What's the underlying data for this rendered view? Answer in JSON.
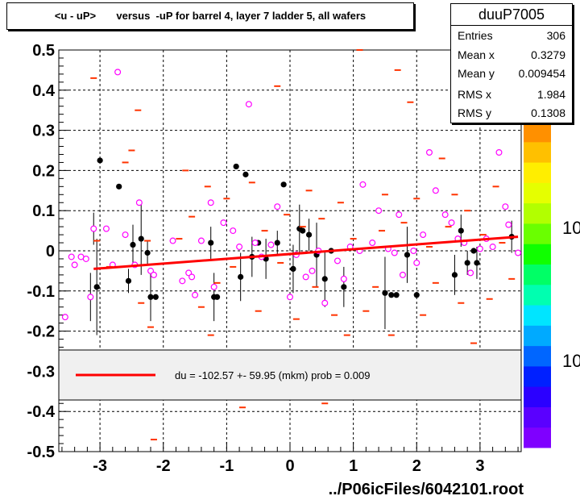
{
  "chart_data": {
    "type": "scatter",
    "title": "<u - uP>       versus  -uP for barrel 4, layer 7 ladder 5, all wafers",
    "xlim": [
      -3.65,
      3.65
    ],
    "ylim": [
      -0.5,
      0.5
    ],
    "xticks": [
      -3,
      -2,
      -1,
      0,
      1,
      2,
      3
    ],
    "yticks": [
      -0.5,
      -0.4,
      -0.3,
      -0.2,
      -0.1,
      0,
      0.1,
      0.2,
      0.3,
      0.4,
      0.5
    ],
    "xtick_labels": [
      "-3",
      "-2",
      "-1",
      "0",
      "1",
      "2",
      "3"
    ],
    "ytick_labels": [
      "-0.5",
      "-0.4",
      "-0.3",
      "-0.2",
      "-0.1",
      "0",
      "0.1",
      "0.2",
      "0.3",
      "0.4",
      "0.5"
    ],
    "grid": true,
    "stats": {
      "name": "duuP7005",
      "rows": [
        {
          "label": "Entries",
          "value": "306"
        },
        {
          "label": "Mean x",
          "value": "0.3279"
        },
        {
          "label": "Mean y",
          "value": "0.009454"
        },
        {
          "label": "RMS x",
          "value": "1.984"
        },
        {
          "label": "RMS y",
          "value": "0.1308"
        }
      ]
    },
    "fit": {
      "x": [
        -3.1,
        3.6
      ],
      "y": [
        -0.045,
        0.035
      ],
      "color": "#ff0000",
      "label": "du = -102.57 +- 59.95 (mkm) prob = 0.009"
    },
    "colorbar": {
      "colors": [
        "#7f00ff",
        "#5a00ff",
        "#2b00ff",
        "#0020ff",
        "#0066ff",
        "#00aaff",
        "#00e5ff",
        "#00ffb0",
        "#00ff66",
        "#10ff00",
        "#6aff00",
        "#b2ff00",
        "#e5ff00",
        "#ffee00",
        "#ffc000",
        "#ff9000",
        "#ff5a00",
        "#ff2000"
      ],
      "labels": [
        "10",
        "10"
      ]
    },
    "series": [
      {
        "marker": "filled-circle",
        "color": "#000000",
        "points": [
          {
            "x": -3.05,
            "y": -0.09,
            "err": 0.12
          },
          {
            "x": -3.0,
            "y": 0.225,
            "err": 0.0
          },
          {
            "x": -2.7,
            "y": 0.16,
            "err": 0.0
          },
          {
            "x": -2.55,
            "y": -0.075,
            "err": 0.03
          },
          {
            "x": -2.48,
            "y": 0.015,
            "err": 0.05
          },
          {
            "x": -2.35,
            "y": 0.03,
            "err": 0.09
          },
          {
            "x": -2.25,
            "y": -0.005,
            "err": 0.03
          },
          {
            "x": -2.2,
            "y": -0.115,
            "err": 0.06
          },
          {
            "x": -2.12,
            "y": -0.115,
            "err": 0.0
          },
          {
            "x": -1.25,
            "y": 0.02,
            "err": 0.04
          },
          {
            "x": -1.2,
            "y": -0.115,
            "err": 0.06
          },
          {
            "x": -1.15,
            "y": -0.115,
            "err": 0.0
          },
          {
            "x": -0.85,
            "y": 0.21,
            "err": 0.0
          },
          {
            "x": -0.78,
            "y": -0.065,
            "err": 0.06
          },
          {
            "x": -0.7,
            "y": 0.19,
            "err": 0.0
          },
          {
            "x": -0.6,
            "y": -0.015,
            "err": 0.05
          },
          {
            "x": -0.5,
            "y": 0.02,
            "err": 0.0
          },
          {
            "x": -0.38,
            "y": -0.02,
            "err": 0.05
          },
          {
            "x": -0.2,
            "y": 0.02,
            "err": 0.03
          },
          {
            "x": -0.1,
            "y": 0.165,
            "err": 0.0
          },
          {
            "x": 0.05,
            "y": -0.045,
            "err": 0.06
          },
          {
            "x": 0.15,
            "y": 0.055,
            "err": 0.06
          },
          {
            "x": 0.2,
            "y": 0.05,
            "err": 0.0
          },
          {
            "x": 0.3,
            "y": 0.04,
            "err": 0.04
          },
          {
            "x": 0.42,
            "y": -0.01,
            "err": 0.08
          },
          {
            "x": 0.55,
            "y": -0.07,
            "err": 0.07
          },
          {
            "x": 0.65,
            "y": 0.0,
            "err": 0.0
          },
          {
            "x": 0.85,
            "y": -0.09,
            "err": 0.05
          },
          {
            "x": 1.5,
            "y": -0.105,
            "err": 0.09
          },
          {
            "x": 1.6,
            "y": -0.11,
            "err": 0.0
          },
          {
            "x": 1.68,
            "y": -0.11,
            "err": 0.0
          },
          {
            "x": 1.85,
            "y": -0.01,
            "err": 0.07
          },
          {
            "x": 2.0,
            "y": -0.11,
            "err": 0.0
          },
          {
            "x": 2.6,
            "y": -0.06,
            "err": 0.05
          },
          {
            "x": 2.7,
            "y": 0.05,
            "err": 0.04
          },
          {
            "x": 2.8,
            "y": -0.03,
            "err": 0.03
          },
          {
            "x": 2.9,
            "y": 0.0,
            "err": 0.0
          },
          {
            "x": 2.95,
            "y": -0.03,
            "err": 0.04
          },
          {
            "x": 3.5,
            "y": 0.035,
            "err": 0.04
          }
        ]
      },
      {
        "marker": "open-circle",
        "color": "#ff00ff",
        "points": [
          {
            "x": -3.55,
            "y": -0.165,
            "err": 0.0
          },
          {
            "x": -3.45,
            "y": -0.015,
            "err": 0.0
          },
          {
            "x": -3.4,
            "y": -0.035,
            "err": 0.0
          },
          {
            "x": -3.3,
            "y": -0.015,
            "err": 0.0
          },
          {
            "x": -3.22,
            "y": -0.02,
            "err": 0.0
          },
          {
            "x": -3.15,
            "y": -0.115,
            "err": 0.06
          },
          {
            "x": -3.1,
            "y": 0.055,
            "err": 0.04
          },
          {
            "x": -2.9,
            "y": 0.055,
            "err": 0.0
          },
          {
            "x": -2.8,
            "y": -0.035,
            "err": 0.0
          },
          {
            "x": -2.72,
            "y": 0.445,
            "err": 0.0
          },
          {
            "x": -2.6,
            "y": 0.04,
            "err": 0.0
          },
          {
            "x": -2.45,
            "y": -0.035,
            "err": 0.0
          },
          {
            "x": -2.38,
            "y": 0.12,
            "err": 0.0
          },
          {
            "x": -2.2,
            "y": -0.05,
            "err": 0.0
          },
          {
            "x": -2.15,
            "y": -0.06,
            "err": 0.0
          },
          {
            "x": -1.85,
            "y": 0.025,
            "err": 0.0
          },
          {
            "x": -1.7,
            "y": -0.075,
            "err": 0.0
          },
          {
            "x": -1.6,
            "y": -0.055,
            "err": 0.0
          },
          {
            "x": -1.55,
            "y": -0.065,
            "err": 0.0
          },
          {
            "x": -1.5,
            "y": -0.11,
            "err": 0.0
          },
          {
            "x": -1.4,
            "y": 0.025,
            "err": 0.0
          },
          {
            "x": -1.25,
            "y": 0.12,
            "err": 0.0
          },
          {
            "x": -1.2,
            "y": -0.09,
            "err": 0.0
          },
          {
            "x": -1.05,
            "y": 0.07,
            "err": 0.0
          },
          {
            "x": -0.9,
            "y": 0.05,
            "err": 0.0
          },
          {
            "x": -0.8,
            "y": 0.01,
            "err": 0.0
          },
          {
            "x": -0.65,
            "y": 0.365,
            "err": 0.0
          },
          {
            "x": -0.55,
            "y": 0.02,
            "err": 0.0
          },
          {
            "x": -0.45,
            "y": -0.015,
            "err": 0.0
          },
          {
            "x": -0.3,
            "y": 0.015,
            "err": 0.0
          },
          {
            "x": -0.2,
            "y": 0.11,
            "err": 0.0
          },
          {
            "x": 0.0,
            "y": -0.115,
            "err": 0.0
          },
          {
            "x": 0.1,
            "y": -0.01,
            "err": 0.0
          },
          {
            "x": 0.25,
            "y": -0.065,
            "err": 0.0
          },
          {
            "x": 0.35,
            "y": -0.05,
            "err": 0.0
          },
          {
            "x": 0.45,
            "y": 0.0,
            "err": 0.0
          },
          {
            "x": 0.55,
            "y": -0.13,
            "err": 0.0
          },
          {
            "x": 0.75,
            "y": -0.025,
            "err": 0.0
          },
          {
            "x": 0.85,
            "y": -0.07,
            "err": 0.0
          },
          {
            "x": 0.95,
            "y": 0.01,
            "err": 0.0
          },
          {
            "x": 1.1,
            "y": 0.0,
            "err": 0.0
          },
          {
            "x": 1.15,
            "y": 0.165,
            "err": 0.0
          },
          {
            "x": 1.3,
            "y": 0.02,
            "err": 0.0
          },
          {
            "x": 1.4,
            "y": 0.1,
            "err": 0.0
          },
          {
            "x": 1.55,
            "y": 0.005,
            "err": 0.0
          },
          {
            "x": 1.65,
            "y": -0.005,
            "err": 0.0
          },
          {
            "x": 1.72,
            "y": 0.09,
            "err": 0.0
          },
          {
            "x": 1.78,
            "y": -0.06,
            "err": 0.0
          },
          {
            "x": 1.95,
            "y": 0.0,
            "err": 0.0
          },
          {
            "x": 2.0,
            "y": -0.03,
            "err": 0.0
          },
          {
            "x": 2.1,
            "y": 0.04,
            "err": 0.0
          },
          {
            "x": 2.2,
            "y": 0.245,
            "err": 0.0
          },
          {
            "x": 2.3,
            "y": 0.15,
            "err": 0.0
          },
          {
            "x": 2.45,
            "y": 0.09,
            "err": 0.0
          },
          {
            "x": 2.55,
            "y": 0.07,
            "err": 0.0
          },
          {
            "x": 2.65,
            "y": 0.03,
            "err": 0.0
          },
          {
            "x": 2.75,
            "y": 0.02,
            "err": 0.0
          },
          {
            "x": 2.85,
            "y": -0.055,
            "err": 0.0
          },
          {
            "x": 3.0,
            "y": 0.005,
            "err": 0.0
          },
          {
            "x": 3.1,
            "y": 0.03,
            "err": 0.0
          },
          {
            "x": 3.2,
            "y": 0.01,
            "err": 0.0
          },
          {
            "x": 3.3,
            "y": 0.245,
            "err": 0.0
          },
          {
            "x": 3.4,
            "y": 0.11,
            "err": 0.0
          },
          {
            "x": 3.45,
            "y": 0.065,
            "err": 0.0
          },
          {
            "x": 3.6,
            "y": -0.005,
            "err": 0.0
          }
        ]
      },
      {
        "marker": "dash",
        "color": "#ff3300",
        "points": [
          {
            "x": -3.1,
            "y": 0.43,
            "err": 0.0
          },
          {
            "x": -3.05,
            "y": 0.025,
            "err": 0.0
          },
          {
            "x": -2.85,
            "y": -0.04,
            "err": 0.0
          },
          {
            "x": -2.6,
            "y": 0.22,
            "err": 0.0
          },
          {
            "x": -2.5,
            "y": 0.25,
            "err": 0.0
          },
          {
            "x": -2.4,
            "y": 0.35,
            "err": 0.0
          },
          {
            "x": -2.35,
            "y": -0.13,
            "err": 0.0
          },
          {
            "x": -2.25,
            "y": 0.025,
            "err": 0.0
          },
          {
            "x": -2.2,
            "y": -0.19,
            "err": 0.0
          },
          {
            "x": -2.15,
            "y": -0.47,
            "err": 0.0
          },
          {
            "x": -1.75,
            "y": 0.03,
            "err": 0.0
          },
          {
            "x": -1.65,
            "y": 0.2,
            "err": 0.0
          },
          {
            "x": -1.55,
            "y": 0.085,
            "err": 0.0
          },
          {
            "x": -1.4,
            "y": -0.14,
            "err": 0.0
          },
          {
            "x": -1.3,
            "y": 0.16,
            "err": 0.0
          },
          {
            "x": -1.25,
            "y": -0.21,
            "err": 0.0
          },
          {
            "x": -1.15,
            "y": -0.08,
            "err": 0.0
          },
          {
            "x": -1.0,
            "y": 0.13,
            "err": 0.0
          },
          {
            "x": -0.9,
            "y": -0.04,
            "err": 0.0
          },
          {
            "x": -0.75,
            "y": -0.39,
            "err": 0.0
          },
          {
            "x": -0.6,
            "y": 0.17,
            "err": 0.0
          },
          {
            "x": -0.5,
            "y": -0.15,
            "err": 0.0
          },
          {
            "x": -0.4,
            "y": 0.05,
            "err": 0.0
          },
          {
            "x": -0.2,
            "y": 0.41,
            "err": 0.0
          },
          {
            "x": -0.15,
            "y": -0.03,
            "err": 0.0
          },
          {
            "x": -0.05,
            "y": 0.09,
            "err": 0.0
          },
          {
            "x": 0.1,
            "y": -0.17,
            "err": 0.0
          },
          {
            "x": 0.2,
            "y": 0.06,
            "err": 0.0
          },
          {
            "x": 0.3,
            "y": 0.15,
            "err": 0.0
          },
          {
            "x": 0.4,
            "y": -0.09,
            "err": 0.0
          },
          {
            "x": 0.5,
            "y": 0.08,
            "err": 0.0
          },
          {
            "x": 0.55,
            "y": -0.38,
            "err": 0.0
          },
          {
            "x": 0.7,
            "y": -0.16,
            "err": 0.0
          },
          {
            "x": 0.8,
            "y": 0.12,
            "err": 0.0
          },
          {
            "x": 0.9,
            "y": -0.21,
            "err": 0.0
          },
          {
            "x": 1.0,
            "y": 0.03,
            "err": 0.0
          },
          {
            "x": 1.1,
            "y": 0.5,
            "err": 0.0
          },
          {
            "x": 1.2,
            "y": -0.15,
            "err": 0.0
          },
          {
            "x": 1.35,
            "y": -0.09,
            "err": 0.0
          },
          {
            "x": 1.45,
            "y": 0.05,
            "err": 0.0
          },
          {
            "x": 1.5,
            "y": 0.14,
            "err": 0.0
          },
          {
            "x": 1.6,
            "y": -0.21,
            "err": 0.0
          },
          {
            "x": 1.7,
            "y": 0.45,
            "err": 0.0
          },
          {
            "x": 1.8,
            "y": 0.07,
            "err": 0.0
          },
          {
            "x": 1.9,
            "y": 0.37,
            "err": 0.0
          },
          {
            "x": 2.0,
            "y": 0.13,
            "err": 0.0
          },
          {
            "x": 2.1,
            "y": -0.16,
            "err": 0.0
          },
          {
            "x": 2.2,
            "y": 0.01,
            "err": 0.0
          },
          {
            "x": 2.3,
            "y": -0.08,
            "err": 0.0
          },
          {
            "x": 2.4,
            "y": 0.23,
            "err": 0.0
          },
          {
            "x": 2.5,
            "y": 0.06,
            "err": 0.0
          },
          {
            "x": 2.6,
            "y": 0.14,
            "err": 0.0
          },
          {
            "x": 2.7,
            "y": -0.13,
            "err": 0.0
          },
          {
            "x": 2.8,
            "y": 0.1,
            "err": 0.0
          },
          {
            "x": 2.9,
            "y": -0.23,
            "err": 0.0
          },
          {
            "x": 3.05,
            "y": 0.04,
            "err": 0.0
          },
          {
            "x": 3.15,
            "y": -0.12,
            "err": 0.0
          },
          {
            "x": 3.25,
            "y": 0.16,
            "err": 0.0
          },
          {
            "x": 3.35,
            "y": 0.02,
            "err": 0.0
          },
          {
            "x": 3.5,
            "y": -0.07,
            "err": 0.0
          }
        ]
      }
    ]
  },
  "footer": "../P06icFiles/6042101.root"
}
